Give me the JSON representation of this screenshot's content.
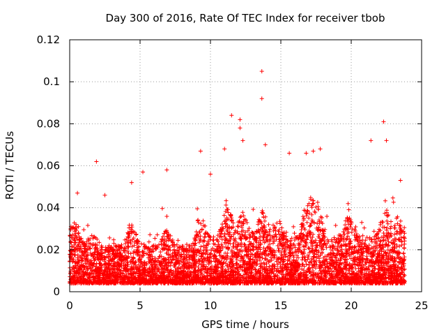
{
  "chart_data": {
    "type": "scatter",
    "title": "Day 300 of 2016, Rate Of TEC Index for receiver tbob",
    "xlabel": "GPS time / hours",
    "ylabel": "ROTI / TECUs",
    "xlim": [
      0,
      25
    ],
    "ylim": [
      0,
      0.12
    ],
    "xticks": [
      0,
      5,
      10,
      15,
      20,
      25
    ],
    "xtick_labels": [
      "0",
      "5",
      "10",
      "15",
      "20",
      "25"
    ],
    "yticks": [
      0,
      0.02,
      0.04,
      0.06,
      0.08,
      0.1,
      0.12
    ],
    "ytick_labels": [
      "0",
      "0.02",
      "0.04",
      "0.06",
      "0.08",
      "0.1",
      "0.12"
    ],
    "grid": true,
    "marker": "+",
    "marker_color": "#ff0000",
    "series": [
      {
        "name": "ROTI",
        "x_range": [
          0,
          23.8
        ],
        "base_band": [
          0.004,
          0.03
        ],
        "samples_per_hour": 320,
        "notable_points": [
          {
            "x": 0.55,
            "y": 0.047
          },
          {
            "x": 1.9,
            "y": 0.062
          },
          {
            "x": 2.5,
            "y": 0.046
          },
          {
            "x": 4.4,
            "y": 0.052
          },
          {
            "x": 5.2,
            "y": 0.057
          },
          {
            "x": 6.9,
            "y": 0.058
          },
          {
            "x": 9.3,
            "y": 0.067
          },
          {
            "x": 10.0,
            "y": 0.056
          },
          {
            "x": 11.0,
            "y": 0.068
          },
          {
            "x": 11.5,
            "y": 0.084
          },
          {
            "x": 12.1,
            "y": 0.082
          },
          {
            "x": 12.1,
            "y": 0.078
          },
          {
            "x": 12.3,
            "y": 0.072
          },
          {
            "x": 13.65,
            "y": 0.105
          },
          {
            "x": 13.65,
            "y": 0.092
          },
          {
            "x": 13.9,
            "y": 0.07
          },
          {
            "x": 15.6,
            "y": 0.066
          },
          {
            "x": 16.8,
            "y": 0.066
          },
          {
            "x": 17.3,
            "y": 0.067
          },
          {
            "x": 17.8,
            "y": 0.068
          },
          {
            "x": 21.4,
            "y": 0.072
          },
          {
            "x": 22.3,
            "y": 0.081
          },
          {
            "x": 22.5,
            "y": 0.072
          },
          {
            "x": 23.5,
            "y": 0.053
          }
        ]
      }
    ]
  }
}
